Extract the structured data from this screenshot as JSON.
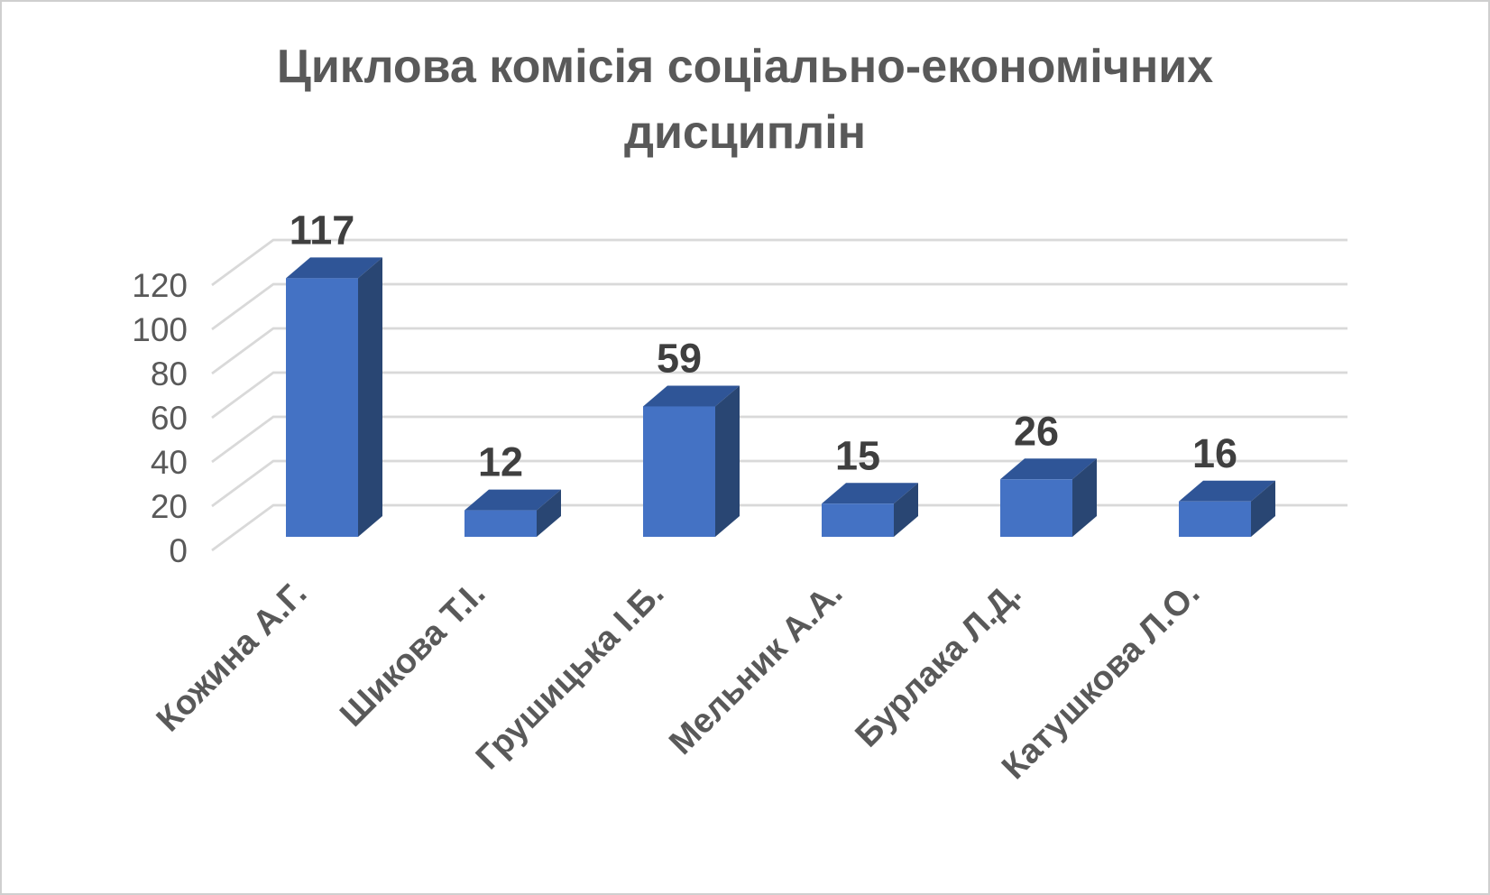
{
  "chart_data": {
    "type": "bar",
    "style": "3d-column",
    "title": "Циклова комісія соціально-економічних дисциплін",
    "categories": [
      "Кожина А.Г.",
      "Шикова Т.І.",
      "Грушицька І.Б.",
      "Мельник А.А.",
      "Бурлака Л.Д.",
      "Катушкова Л.О."
    ],
    "values": [
      117,
      12,
      59,
      15,
      26,
      16
    ],
    "y_ticks": [
      0,
      20,
      40,
      60,
      80,
      100,
      120
    ],
    "ylim": [
      0,
      120
    ],
    "xlabel": "",
    "ylabel": "",
    "legend": "none",
    "grid": true,
    "colors": {
      "bar_front": "#4472C4",
      "bar_top": "#2F5597",
      "bar_side": "#294673",
      "gridline": "#D9D9D9",
      "axis_text": "#595959",
      "value_label_text": "#3F3F3F",
      "title_text": "#595959"
    }
  }
}
